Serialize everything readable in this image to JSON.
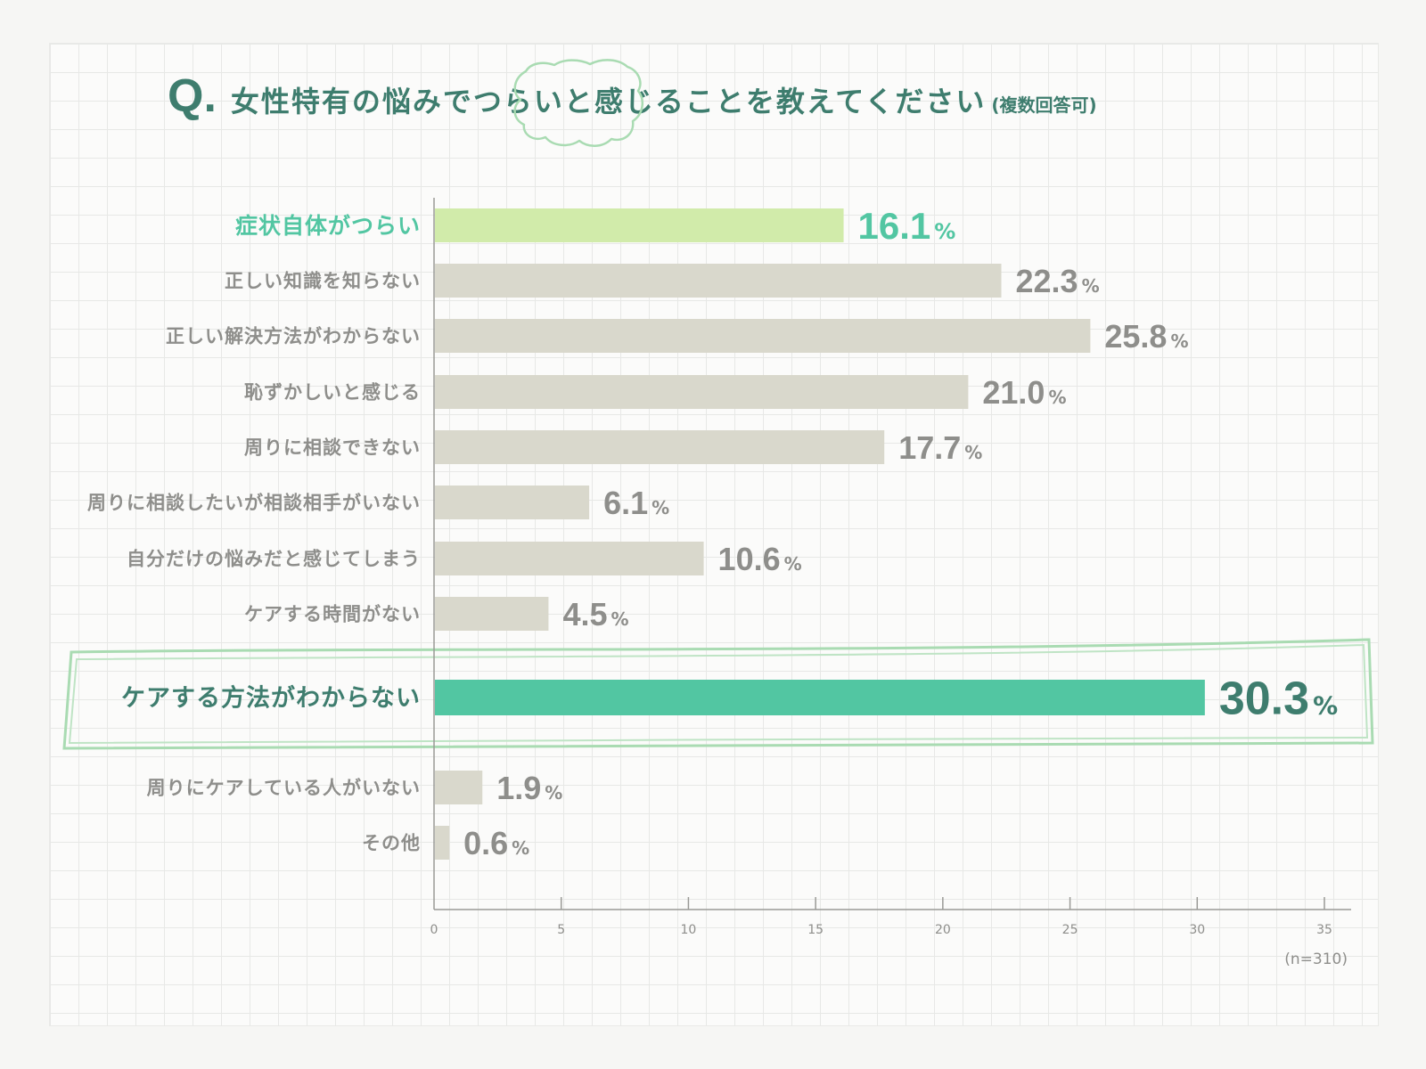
{
  "title": {
    "q_mark": "Q.",
    "text": "女性特有の悩みでつらいと感じることを教えてください",
    "note": "(複数回答可)"
  },
  "colors": {
    "bar_default": "#d9d8cc",
    "bar_light_green": "#d1ebaa",
    "bar_green": "#52c6a2",
    "label_default": "#8e8e8b",
    "label_green": "#52c6a2",
    "label_dark_green": "#3e7d6e",
    "sketch_green": "#a9dbb2"
  },
  "chart_data": {
    "type": "bar",
    "orientation": "horizontal",
    "categories": [
      "症状自体がつらい",
      "正しい知識を知らない",
      "正しい解決方法がわからない",
      "恥ずかしいと感じる",
      "周りに相談できない",
      "周りに相談したいが相談相手がいない",
      "自分だけの悩みだと感じてしまう",
      "ケアする時間がない",
      "ケアする方法がわからない",
      "周りにケアしている人がいない",
      "その他"
    ],
    "values": [
      16.1,
      22.3,
      25.8,
      21.0,
      17.7,
      6.1,
      10.6,
      4.5,
      30.3,
      1.9,
      0.6
    ],
    "value_labels": [
      "16.1",
      "22.3",
      "25.8",
      "21.0",
      "17.7",
      "6.1",
      "10.6",
      "4.5",
      "30.3",
      "1.9",
      "0.6"
    ],
    "unit": "%",
    "highlight": [
      "light",
      "none",
      "none",
      "none",
      "none",
      "none",
      "none",
      "none",
      "strong",
      "none",
      "none"
    ],
    "xlim": [
      0,
      35
    ],
    "xticks": [
      0,
      5,
      10,
      15,
      20,
      25,
      30,
      35
    ],
    "xlabel": "",
    "ylabel": "",
    "sample_note": "(n=310)"
  }
}
